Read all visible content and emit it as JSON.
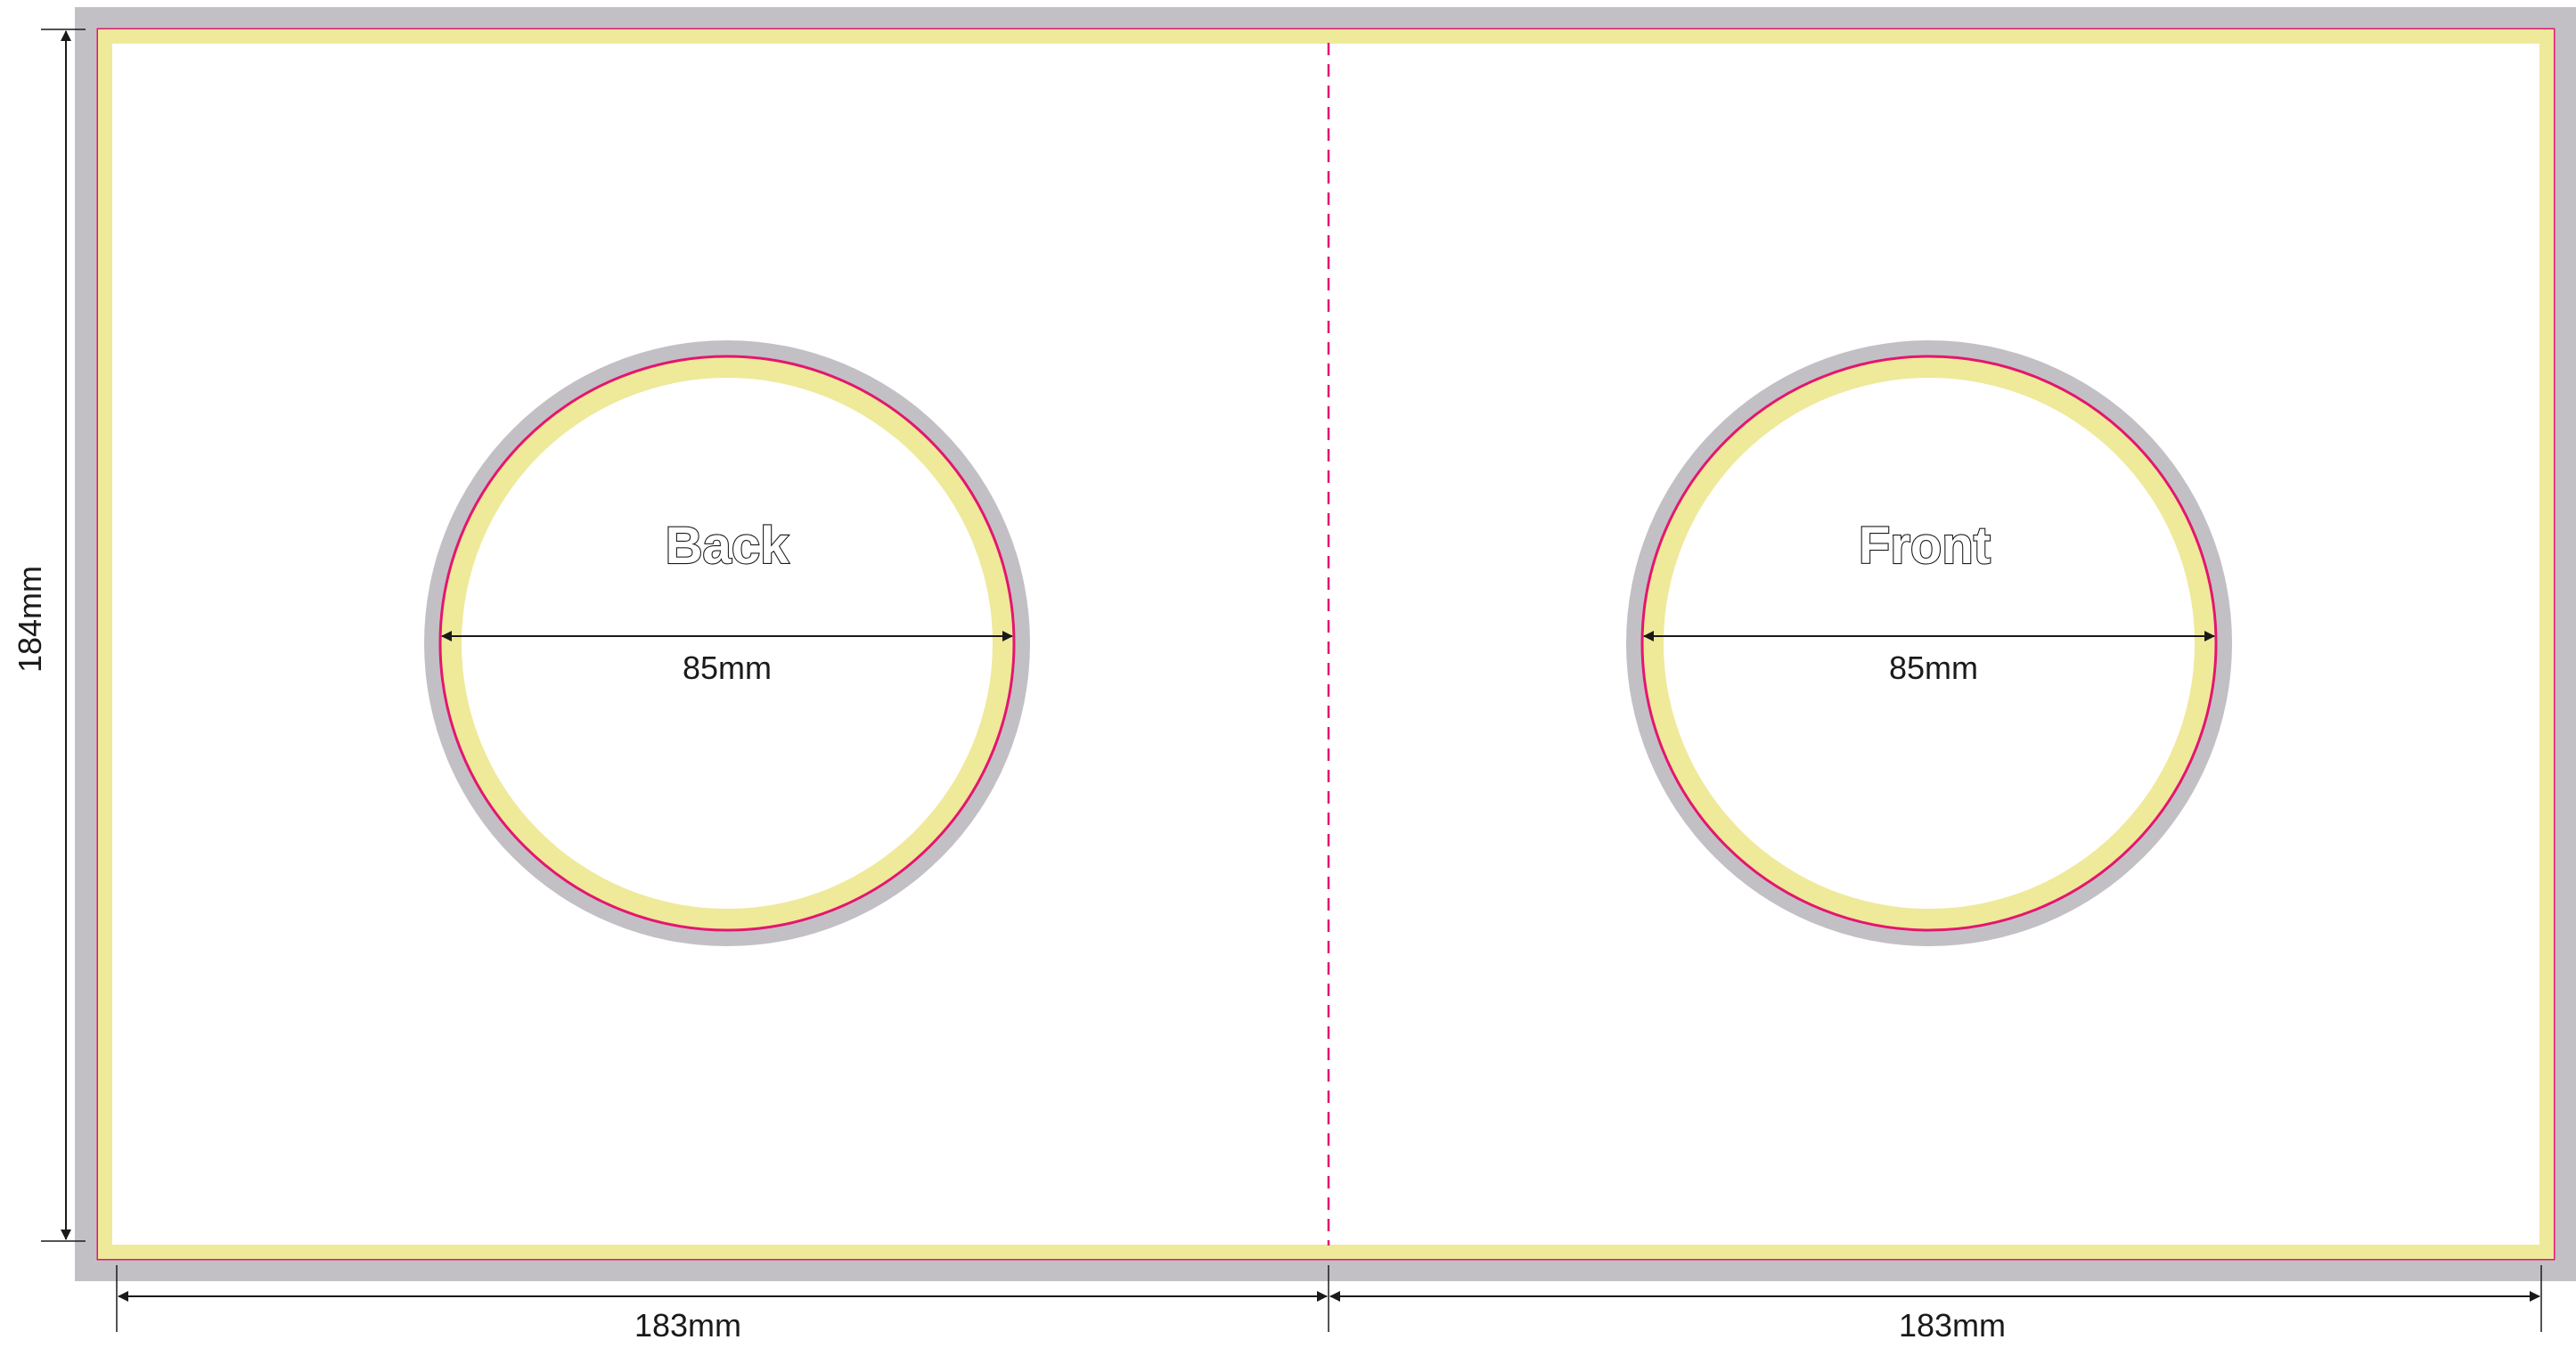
{
  "template": {
    "panels": [
      {
        "key": "back",
        "label": "Back",
        "diameter_label": "85mm"
      },
      {
        "key": "front",
        "label": "Front",
        "diameter_label": "85mm"
      }
    ],
    "dimensions": {
      "height_label": "184mm",
      "left_width_label": "183mm",
      "right_width_label": "183mm"
    },
    "colors": {
      "bleed": "#c3c0c5",
      "trim": "#e4166f",
      "safe": "#efe99a",
      "paper": "#ffffff",
      "ink": "#1a1a1a"
    }
  }
}
